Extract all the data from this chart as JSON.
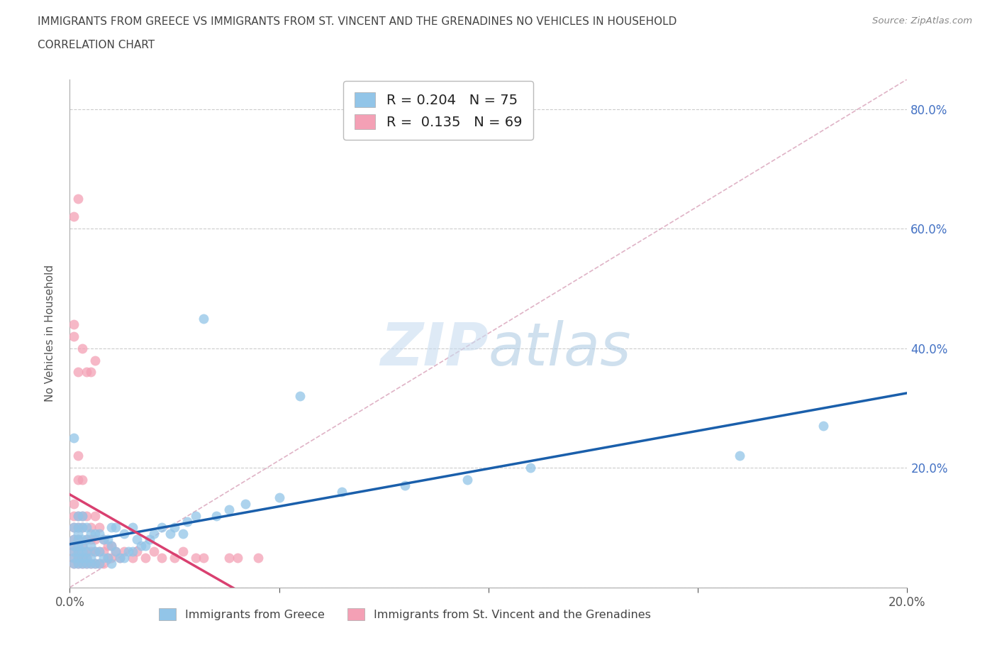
{
  "title_line1": "IMMIGRANTS FROM GREECE VS IMMIGRANTS FROM ST. VINCENT AND THE GRENADINES NO VEHICLES IN HOUSEHOLD",
  "title_line2": "CORRELATION CHART",
  "source_text": "Source: ZipAtlas.com",
  "ylabel": "No Vehicles in Household",
  "xlim": [
    0.0,
    0.2
  ],
  "ylim": [
    0.0,
    0.85
  ],
  "greece_color": "#92C5E8",
  "svgrenadines_color": "#F4A0B5",
  "greece_line_color": "#1A5FAB",
  "svgrenadines_line_color": "#D94070",
  "ref_line_color": "#D8A0B8",
  "greece_R": 0.204,
  "greece_N": 75,
  "svg_R": 0.135,
  "svg_N": 69,
  "legend_label_greece": "Immigrants from Greece",
  "legend_label_svg": "Immigrants from St. Vincent and the Grenadines",
  "greece_x": [
    0.001,
    0.001,
    0.001,
    0.001,
    0.001,
    0.001,
    0.001,
    0.002,
    0.002,
    0.002,
    0.002,
    0.002,
    0.002,
    0.002,
    0.002,
    0.003,
    0.003,
    0.003,
    0.003,
    0.003,
    0.003,
    0.003,
    0.004,
    0.004,
    0.004,
    0.004,
    0.004,
    0.005,
    0.005,
    0.005,
    0.005,
    0.006,
    0.006,
    0.006,
    0.007,
    0.007,
    0.007,
    0.008,
    0.008,
    0.009,
    0.009,
    0.01,
    0.01,
    0.01,
    0.011,
    0.011,
    0.012,
    0.013,
    0.013,
    0.014,
    0.015,
    0.015,
    0.016,
    0.017,
    0.018,
    0.019,
    0.02,
    0.022,
    0.024,
    0.025,
    0.027,
    0.028,
    0.03,
    0.032,
    0.035,
    0.038,
    0.042,
    0.05,
    0.055,
    0.065,
    0.08,
    0.095,
    0.11,
    0.16,
    0.18
  ],
  "greece_y": [
    0.04,
    0.05,
    0.06,
    0.07,
    0.08,
    0.1,
    0.25,
    0.04,
    0.05,
    0.06,
    0.07,
    0.08,
    0.09,
    0.1,
    0.12,
    0.04,
    0.05,
    0.06,
    0.07,
    0.08,
    0.1,
    0.12,
    0.04,
    0.05,
    0.06,
    0.08,
    0.1,
    0.04,
    0.05,
    0.07,
    0.09,
    0.04,
    0.06,
    0.09,
    0.04,
    0.06,
    0.09,
    0.05,
    0.08,
    0.05,
    0.08,
    0.04,
    0.07,
    0.1,
    0.06,
    0.1,
    0.05,
    0.05,
    0.09,
    0.06,
    0.06,
    0.1,
    0.08,
    0.07,
    0.07,
    0.08,
    0.09,
    0.1,
    0.09,
    0.1,
    0.09,
    0.11,
    0.12,
    0.45,
    0.12,
    0.13,
    0.14,
    0.15,
    0.32,
    0.16,
    0.17,
    0.18,
    0.2,
    0.22,
    0.27
  ],
  "svg_x": [
    0.001,
    0.001,
    0.001,
    0.001,
    0.001,
    0.001,
    0.001,
    0.001,
    0.001,
    0.001,
    0.001,
    0.002,
    0.002,
    0.002,
    0.002,
    0.002,
    0.002,
    0.002,
    0.002,
    0.002,
    0.002,
    0.003,
    0.003,
    0.003,
    0.003,
    0.003,
    0.003,
    0.003,
    0.004,
    0.004,
    0.004,
    0.004,
    0.004,
    0.004,
    0.005,
    0.005,
    0.005,
    0.005,
    0.005,
    0.006,
    0.006,
    0.006,
    0.006,
    0.006,
    0.007,
    0.007,
    0.007,
    0.008,
    0.008,
    0.008,
    0.009,
    0.009,
    0.01,
    0.01,
    0.011,
    0.012,
    0.013,
    0.015,
    0.016,
    0.018,
    0.02,
    0.022,
    0.025,
    0.027,
    0.03,
    0.032,
    0.038,
    0.04,
    0.045
  ],
  "svg_y": [
    0.04,
    0.05,
    0.06,
    0.07,
    0.08,
    0.1,
    0.12,
    0.14,
    0.42,
    0.44,
    0.62,
    0.04,
    0.05,
    0.06,
    0.08,
    0.1,
    0.12,
    0.18,
    0.22,
    0.36,
    0.65,
    0.04,
    0.05,
    0.07,
    0.1,
    0.12,
    0.18,
    0.4,
    0.04,
    0.05,
    0.06,
    0.08,
    0.12,
    0.36,
    0.04,
    0.06,
    0.08,
    0.1,
    0.36,
    0.04,
    0.06,
    0.08,
    0.12,
    0.38,
    0.04,
    0.06,
    0.1,
    0.04,
    0.06,
    0.08,
    0.05,
    0.07,
    0.05,
    0.07,
    0.06,
    0.05,
    0.06,
    0.05,
    0.06,
    0.05,
    0.06,
    0.05,
    0.05,
    0.06,
    0.05,
    0.05,
    0.05,
    0.05,
    0.05
  ]
}
